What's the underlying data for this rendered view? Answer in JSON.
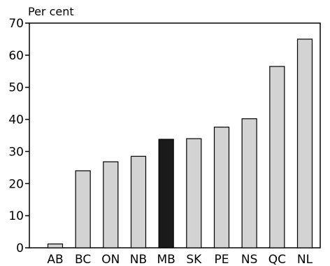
{
  "chart_data": {
    "type": "bar",
    "unit_label": "Per cent",
    "title": "",
    "xlabel": "",
    "ylabel": "Per cent",
    "categories": [
      "AB",
      "BC",
      "ON",
      "NB",
      "MB",
      "SK",
      "PE",
      "NS",
      "QC",
      "NL"
    ],
    "values": [
      1.2,
      24.0,
      26.8,
      28.5,
      33.8,
      34.0,
      37.6,
      40.2,
      56.5,
      65.0
    ],
    "highlight_category": "MB",
    "ylim": [
      0,
      70
    ],
    "yticks": [
      0,
      10,
      20,
      30,
      40,
      50,
      60,
      70
    ],
    "grid": false,
    "legend": "none"
  },
  "colors": {
    "bar_fill": "#d3d3d3",
    "bar_highlight": "#1a1a1a",
    "bar_stroke": "#000000",
    "axis": "#000000"
  }
}
